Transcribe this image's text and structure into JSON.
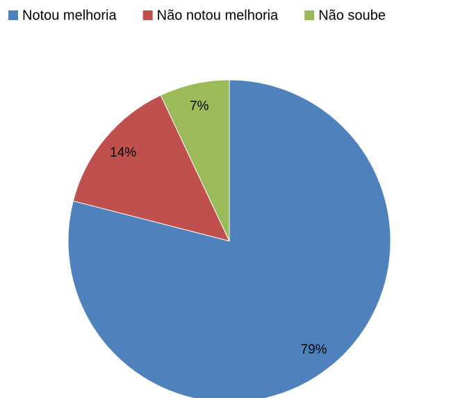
{
  "chart_data": {
    "type": "pie",
    "categories": [
      "Notou melhoria",
      "Não notou melhoria",
      "Não soube"
    ],
    "values": [
      79,
      14,
      7
    ],
    "value_labels": [
      "79%",
      "14%",
      "7%"
    ],
    "colors": [
      "#4f81bd",
      "#c0504d",
      "#9bbb59"
    ],
    "legend": "top"
  }
}
